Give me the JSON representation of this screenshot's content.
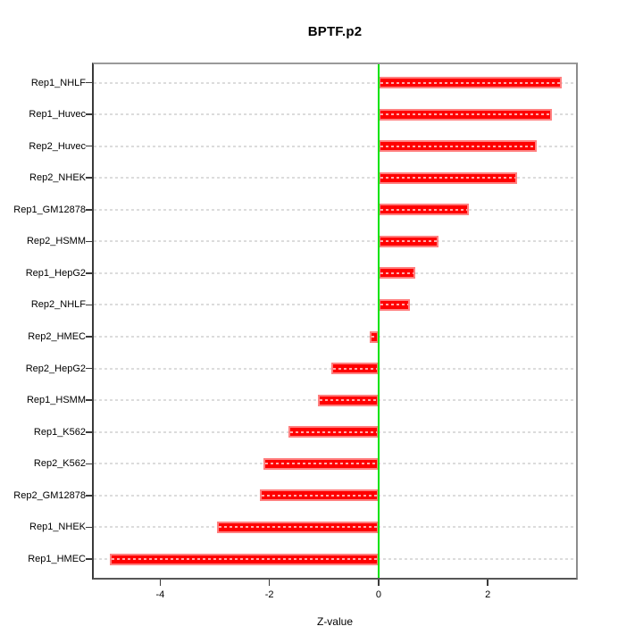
{
  "chart_data": {
    "type": "bar",
    "orientation": "horizontal",
    "title": "BPTF.p2",
    "xlabel": "Z-value",
    "categories": [
      "Rep1_NHLF",
      "Rep1_Huvec",
      "Rep2_Huvec",
      "Rep2_NHEK",
      "Rep1_GM12878",
      "Rep2_HSMM",
      "Rep1_HepG2",
      "Rep2_NHLF",
      "Rep2_HMEC",
      "Rep2_HepG2",
      "Rep1_HSMM",
      "Rep1_K562",
      "Rep2_K562",
      "Rep2_GM12878",
      "Rep1_NHEK",
      "Rep1_HMEC"
    ],
    "values": [
      3.35,
      3.18,
      2.9,
      2.54,
      1.66,
      1.1,
      0.67,
      0.58,
      -0.17,
      -0.87,
      -1.11,
      -1.65,
      -2.11,
      -2.18,
      -2.96,
      -4.92
    ],
    "x_ticks": [
      -4,
      -2,
      0,
      2
    ],
    "xlim": [
      -5.25,
      3.65
    ],
    "grid": true,
    "legend": false,
    "zero_line_x": 0,
    "colors": {
      "bar_fill": "#ff0000",
      "bar_border": "#ff8080",
      "bar_dash": "#ffabab",
      "zero_line": "#00e300",
      "grid_line": "#dcdcdc",
      "axis_frame": "#808080",
      "tick": "#3a3a3a",
      "text": "#000000"
    }
  }
}
